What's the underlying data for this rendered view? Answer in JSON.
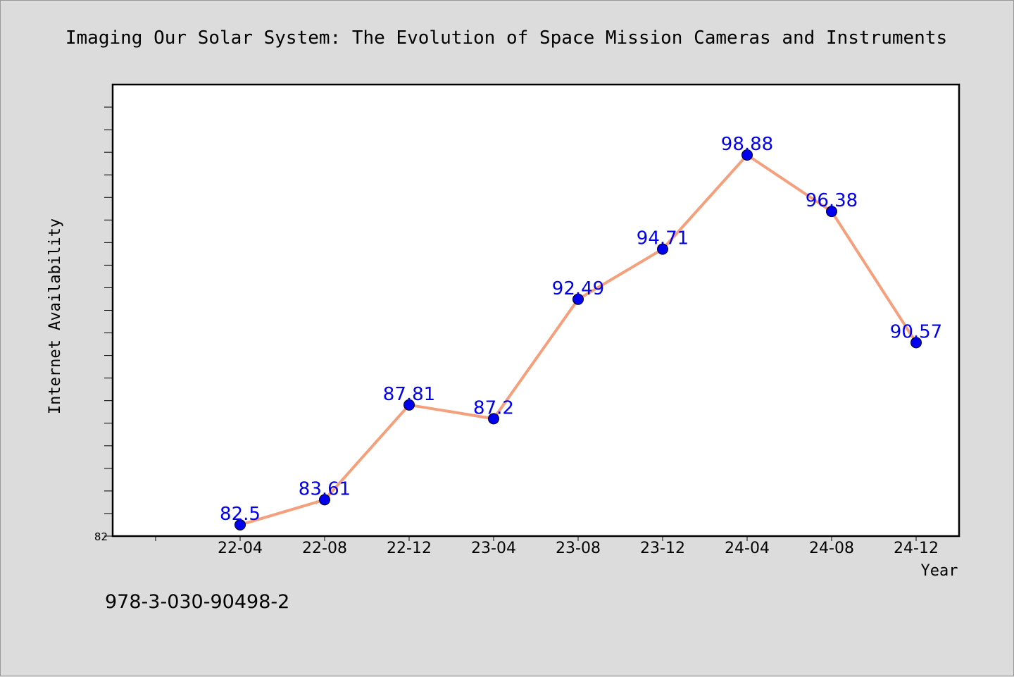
{
  "chart_data": {
    "type": "line",
    "title": "Imaging Our Solar System: The Evolution of Space Mission Cameras and Instruments",
    "xlabel": "Year",
    "ylabel": "Internet Availability",
    "categories": [
      "22-04",
      "22-08",
      "22-12",
      "23-04",
      "23-08",
      "23-12",
      "24-04",
      "24-08",
      "24-12"
    ],
    "series": [
      {
        "values": [
          82.5,
          83.61,
          87.81,
          87.2,
          92.49,
          94.71,
          98.88,
          96.38,
          90.57
        ]
      }
    ],
    "data_labels": [
      "82.5",
      "83.61",
      "87.81",
      "87.2",
      "92.49",
      "94.71",
      "98.88",
      "96.38",
      "90.57"
    ],
    "y_tick_labels": [
      "82"
    ],
    "ylim": [
      82,
      102
    ],
    "grid": false,
    "line_color": "#f4a07c",
    "marker_color": "#0000ee",
    "label_color": "#0000ee"
  },
  "footer": {
    "isbn": "978-3-030-90498-2"
  }
}
